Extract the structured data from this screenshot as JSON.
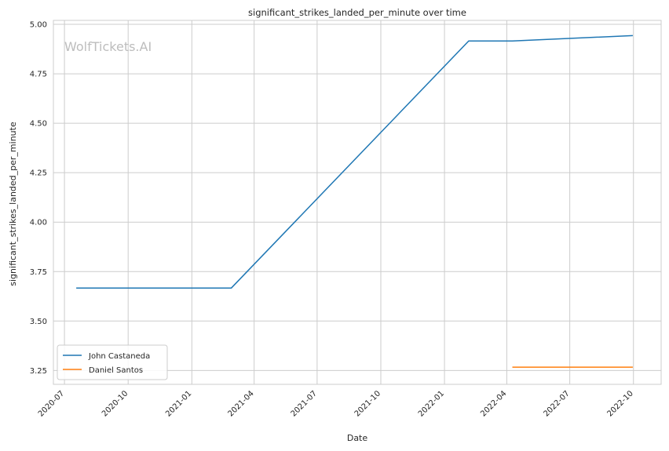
{
  "chart_data": {
    "type": "line",
    "title": "significant_strikes_landed_per_minute over time",
    "xlabel": "Date",
    "ylabel": "significant_strikes_landed_per_minute",
    "watermark": "WolfTickets.AI",
    "xlim": [
      "2020-06-15",
      "2022-11-10"
    ],
    "ylim": [
      3.18,
      5.02
    ],
    "grid": true,
    "legend_position": "lower-left",
    "x_ticks": [
      "2020-07",
      "2020-10",
      "2021-01",
      "2021-04",
      "2021-07",
      "2021-10",
      "2022-01",
      "2022-04",
      "2022-07",
      "2022-10"
    ],
    "y_ticks": [
      "3.25",
      "3.50",
      "3.75",
      "4.00",
      "4.25",
      "4.50",
      "4.75",
      "5.00"
    ],
    "series": [
      {
        "name": "John Castaneda",
        "color": "#1f77b4",
        "x": [
          "2020-07-18",
          "2021-02-27",
          "2022-02-05",
          "2022-04-09",
          "2022-09-30"
        ],
        "y": [
          3.667,
          3.667,
          4.916,
          4.916,
          4.943
        ]
      },
      {
        "name": "Daniel Santos",
        "color": "#ff7f0e",
        "x": [
          "2022-04-09",
          "2022-09-30"
        ],
        "y": [
          3.267,
          3.267
        ]
      }
    ]
  }
}
